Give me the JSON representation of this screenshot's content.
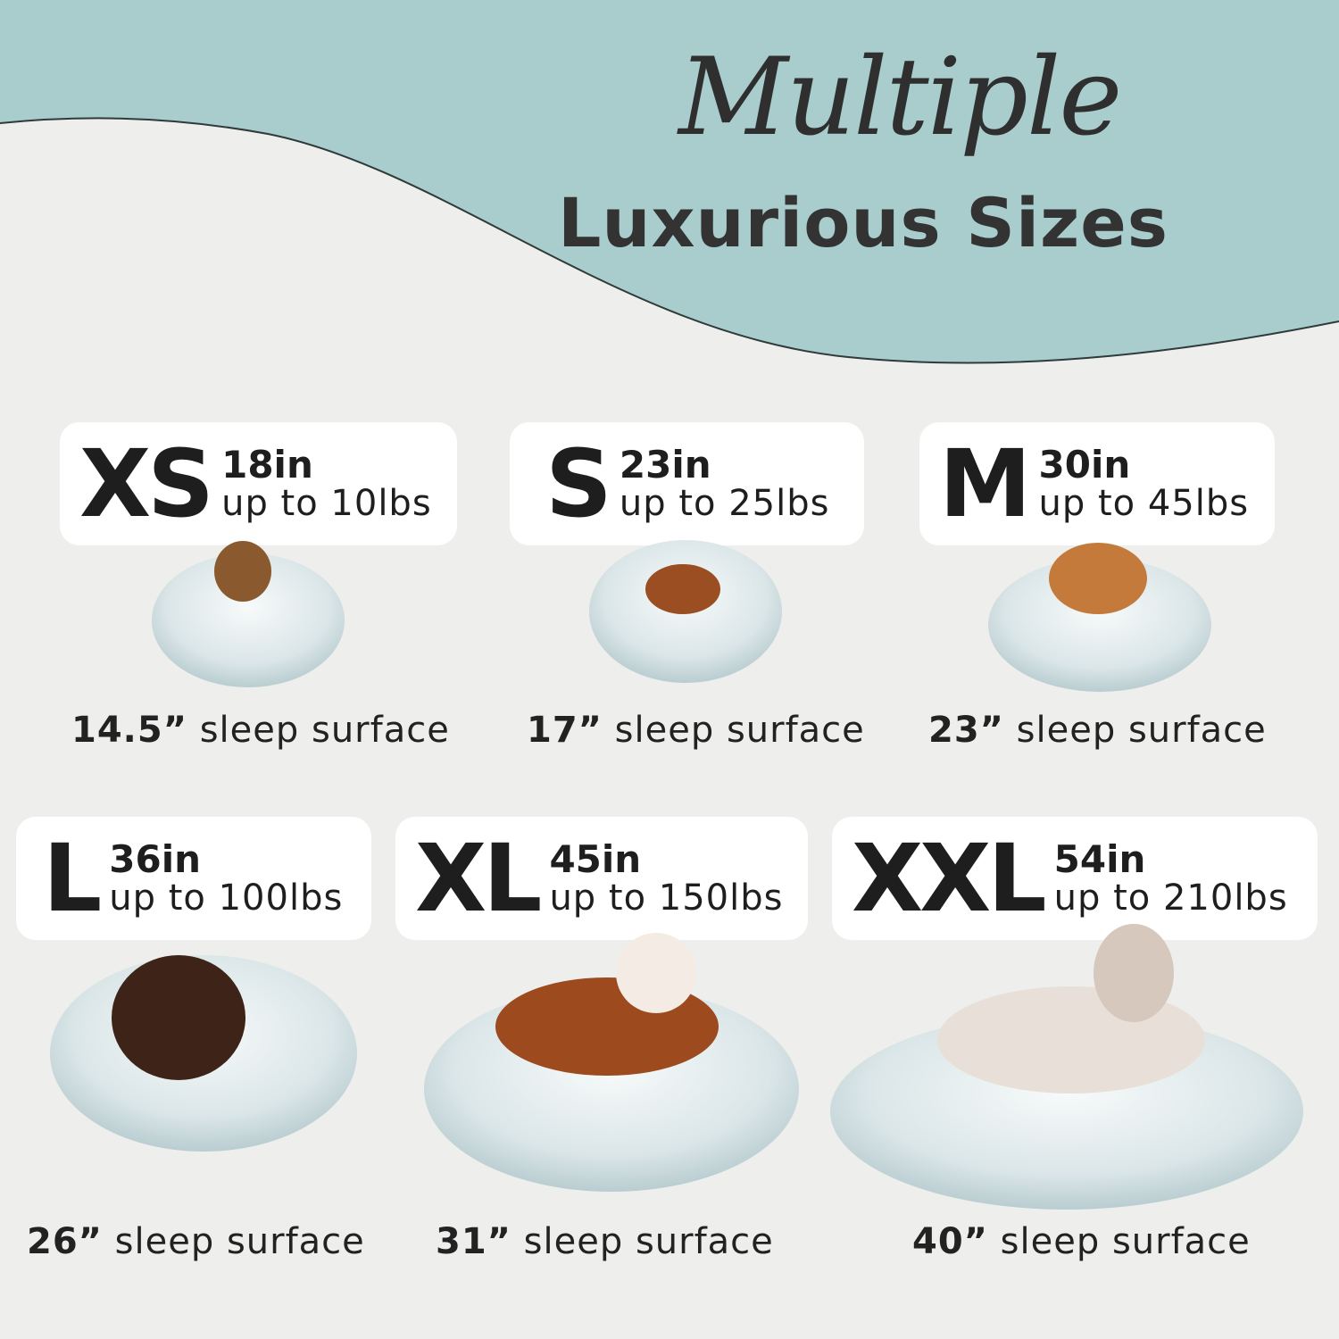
{
  "header": {
    "title_script": "Multiple",
    "title_bold": "Luxurious Sizes"
  },
  "colors": {
    "teal": "#a8cdcc",
    "background": "#eeeeec",
    "card": "#ffffff",
    "text": "#1e1e1e",
    "bed": "#dfe8ea"
  },
  "sizes": [
    {
      "letter": "XS",
      "length": "18in",
      "weight": "up to 10lbs",
      "surface_value": "14.5”",
      "surface_label": "sleep surface"
    },
    {
      "letter": "S",
      "length": "23in",
      "weight": "up to 25lbs",
      "surface_value": "17”",
      "surface_label": "sleep surface"
    },
    {
      "letter": "M",
      "length": "30in",
      "weight": "up to 45lbs",
      "surface_value": "23”",
      "surface_label": "sleep surface"
    },
    {
      "letter": "L",
      "length": "36in",
      "weight": "up to 100lbs",
      "surface_value": "26”",
      "surface_label": "sleep surface"
    },
    {
      "letter": "XL",
      "length": "45in",
      "weight": "up to 150lbs",
      "surface_value": "31”",
      "surface_label": "sleep surface"
    },
    {
      "letter": "XXL",
      "length": "54in",
      "weight": "up to 210lbs",
      "surface_value": "40”",
      "surface_label": "sleep surface"
    }
  ]
}
